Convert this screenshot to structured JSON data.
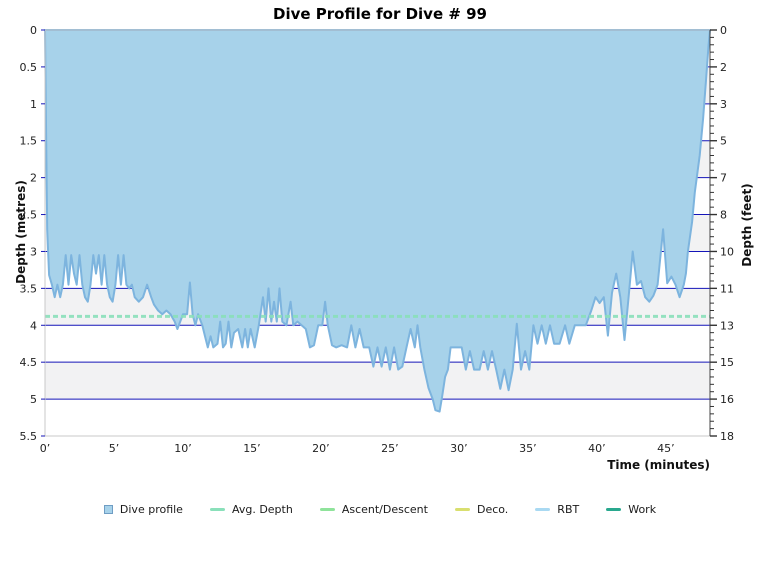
{
  "title": "Dive Profile for Dive # 99",
  "axes": {
    "x": {
      "label": "Time (minutes)",
      "tick_values": [
        0,
        5,
        10,
        15,
        20,
        25,
        30,
        35,
        40,
        45
      ],
      "tick_labels": [
        "0’",
        "5’",
        "10’",
        "15’",
        "20’",
        "25’",
        "30’",
        "35’",
        "40’",
        "45’"
      ],
      "min": 0,
      "max": 48.2
    },
    "y_left": {
      "label": "Depth (metres)",
      "tick_values": [
        0,
        0.5,
        1,
        1.5,
        2,
        2.5,
        3,
        3.5,
        4,
        4.5,
        5,
        5.5
      ],
      "tick_labels": [
        "0",
        "0.5",
        "1",
        "1.5",
        "2",
        "2.5",
        "3",
        "3.5",
        "4",
        "4.5",
        "5",
        "5.5"
      ],
      "min": 0,
      "max": 5.5,
      "inverted": true
    },
    "y_right": {
      "label": "Depth (feet)",
      "tick_labels": [
        "0",
        "2",
        "3",
        "5",
        "7",
        "8",
        "10",
        "11",
        "13",
        "15",
        "16",
        "18"
      ],
      "minor_tick_step_metres": 0.1
    }
  },
  "legend": [
    {
      "label": "Dive profile",
      "marker": "square",
      "color": "#a7d2ea"
    },
    {
      "label": "Avg. Depth",
      "marker": "line",
      "color": "#8ae0ba"
    },
    {
      "label": "Ascent/Descent",
      "marker": "line",
      "color": "#8fe39b"
    },
    {
      "label": "Deco.",
      "marker": "line",
      "color": "#d9df6f"
    },
    {
      "label": "RBT",
      "marker": "line",
      "color": "#a9d9f2"
    },
    {
      "label": "Work",
      "marker": "line",
      "color": "#29a88e"
    }
  ],
  "colors": {
    "profile_fill": "#a7d2ea",
    "profile_stroke": "#7db4de",
    "gridline": "#1515b8",
    "avg_depth_line": "#8ae0ba",
    "band_gray": "#f2f2f3",
    "plot_border": "#c8c8c8",
    "right_spine": "#444444",
    "tick_text": "#222222"
  },
  "chart_data": {
    "type": "area",
    "title": "Dive Profile for Dive # 99",
    "xlabel": "Time (minutes)",
    "ylabel_left": "Depth (metres)",
    "ylabel_right": "Depth (feet)",
    "xlim": [
      0,
      48.2
    ],
    "ylim_metres": [
      0,
      5.5
    ],
    "y_axis_inverted": true,
    "grid": "horizontal_0.5m_navy_under_fill",
    "background_bands": "alternating white/#f2f2f3 every 0.5 m",
    "legend_position": "bottom-center",
    "avg_depth_m": 3.88,
    "max_depth_m": 5.17,
    "series": [
      {
        "name": "Dive profile",
        "units": [
          "minutes",
          "metres"
        ],
        "points": [
          [
            0,
            0
          ],
          [
            0.08,
            1.4
          ],
          [
            0.16,
            2.7
          ],
          [
            0.3,
            3.32
          ],
          [
            0.5,
            3.45
          ],
          [
            0.7,
            3.62
          ],
          [
            0.9,
            3.45
          ],
          [
            1.1,
            3.62
          ],
          [
            1.3,
            3.45
          ],
          [
            1.5,
            3.05
          ],
          [
            1.7,
            3.45
          ],
          [
            1.9,
            3.05
          ],
          [
            2.1,
            3.3
          ],
          [
            2.3,
            3.45
          ],
          [
            2.5,
            3.05
          ],
          [
            2.7,
            3.45
          ],
          [
            2.9,
            3.62
          ],
          [
            3.1,
            3.68
          ],
          [
            3.3,
            3.45
          ],
          [
            3.5,
            3.05
          ],
          [
            3.7,
            3.3
          ],
          [
            3.9,
            3.05
          ],
          [
            4.1,
            3.45
          ],
          [
            4.3,
            3.05
          ],
          [
            4.5,
            3.45
          ],
          [
            4.7,
            3.62
          ],
          [
            4.9,
            3.68
          ],
          [
            5.1,
            3.45
          ],
          [
            5.3,
            3.05
          ],
          [
            5.5,
            3.45
          ],
          [
            5.7,
            3.05
          ],
          [
            5.9,
            3.45
          ],
          [
            6.1,
            3.5
          ],
          [
            6.3,
            3.45
          ],
          [
            6.5,
            3.62
          ],
          [
            6.8,
            3.68
          ],
          [
            7.1,
            3.62
          ],
          [
            7.4,
            3.45
          ],
          [
            7.7,
            3.62
          ],
          [
            7.9,
            3.72
          ],
          [
            8.2,
            3.8
          ],
          [
            8.5,
            3.85
          ],
          [
            8.8,
            3.8
          ],
          [
            9.1,
            3.85
          ],
          [
            9.4,
            3.95
          ],
          [
            9.6,
            4.05
          ],
          [
            9.8,
            3.95
          ],
          [
            10.0,
            3.85
          ],
          [
            10.3,
            3.85
          ],
          [
            10.5,
            3.42
          ],
          [
            10.7,
            3.85
          ],
          [
            10.9,
            4.0
          ],
          [
            11.1,
            3.85
          ],
          [
            11.4,
            4.0
          ],
          [
            11.6,
            4.15
          ],
          [
            11.8,
            4.3
          ],
          [
            12.0,
            4.15
          ],
          [
            12.2,
            4.3
          ],
          [
            12.5,
            4.25
          ],
          [
            12.7,
            3.95
          ],
          [
            12.9,
            4.3
          ],
          [
            13.1,
            4.25
          ],
          [
            13.3,
            3.95
          ],
          [
            13.5,
            4.3
          ],
          [
            13.7,
            4.1
          ],
          [
            14.0,
            4.05
          ],
          [
            14.3,
            4.3
          ],
          [
            14.5,
            4.05
          ],
          [
            14.7,
            4.3
          ],
          [
            14.9,
            4.05
          ],
          [
            15.2,
            4.3
          ],
          [
            15.5,
            4.0
          ],
          [
            15.8,
            3.62
          ],
          [
            16.0,
            3.95
          ],
          [
            16.2,
            3.5
          ],
          [
            16.4,
            3.95
          ],
          [
            16.6,
            3.68
          ],
          [
            16.8,
            3.95
          ],
          [
            17.0,
            3.5
          ],
          [
            17.2,
            3.95
          ],
          [
            17.5,
            4.0
          ],
          [
            17.8,
            3.68
          ],
          [
            18.0,
            4.0
          ],
          [
            18.3,
            3.95
          ],
          [
            18.6,
            4.0
          ],
          [
            18.9,
            4.05
          ],
          [
            19.2,
            4.3
          ],
          [
            19.5,
            4.27
          ],
          [
            19.8,
            4.0
          ],
          [
            20.1,
            4.0
          ],
          [
            20.3,
            3.68
          ],
          [
            20.5,
            4.0
          ],
          [
            20.8,
            4.27
          ],
          [
            21.1,
            4.3
          ],
          [
            21.5,
            4.27
          ],
          [
            21.9,
            4.3
          ],
          [
            22.2,
            4.0
          ],
          [
            22.5,
            4.3
          ],
          [
            22.8,
            4.05
          ],
          [
            23.1,
            4.3
          ],
          [
            23.5,
            4.3
          ],
          [
            23.8,
            4.56
          ],
          [
            24.1,
            4.3
          ],
          [
            24.4,
            4.56
          ],
          [
            24.7,
            4.3
          ],
          [
            25.0,
            4.6
          ],
          [
            25.3,
            4.3
          ],
          [
            25.6,
            4.6
          ],
          [
            25.9,
            4.56
          ],
          [
            26.2,
            4.3
          ],
          [
            26.5,
            4.05
          ],
          [
            26.8,
            4.3
          ],
          [
            27.0,
            4.0
          ],
          [
            27.2,
            4.3
          ],
          [
            27.5,
            4.6
          ],
          [
            27.8,
            4.85
          ],
          [
            28.1,
            5.0
          ],
          [
            28.3,
            5.15
          ],
          [
            28.6,
            5.17
          ],
          [
            28.8,
            4.95
          ],
          [
            29.0,
            4.7
          ],
          [
            29.2,
            4.6
          ],
          [
            29.4,
            4.3
          ],
          [
            29.8,
            4.3
          ],
          [
            30.2,
            4.3
          ],
          [
            30.5,
            4.6
          ],
          [
            30.8,
            4.35
          ],
          [
            31.1,
            4.6
          ],
          [
            31.5,
            4.6
          ],
          [
            31.8,
            4.35
          ],
          [
            32.1,
            4.6
          ],
          [
            32.4,
            4.35
          ],
          [
            32.7,
            4.6
          ],
          [
            33.0,
            4.86
          ],
          [
            33.3,
            4.6
          ],
          [
            33.6,
            4.88
          ],
          [
            33.9,
            4.6
          ],
          [
            34.2,
            3.98
          ],
          [
            34.5,
            4.6
          ],
          [
            34.8,
            4.35
          ],
          [
            35.1,
            4.6
          ],
          [
            35.4,
            4.0
          ],
          [
            35.7,
            4.25
          ],
          [
            36.0,
            4.0
          ],
          [
            36.3,
            4.25
          ],
          [
            36.6,
            4.0
          ],
          [
            36.9,
            4.25
          ],
          [
            37.3,
            4.25
          ],
          [
            37.7,
            4.0
          ],
          [
            38.0,
            4.25
          ],
          [
            38.4,
            4.0
          ],
          [
            38.8,
            4.0
          ],
          [
            39.2,
            4.0
          ],
          [
            39.6,
            3.8
          ],
          [
            39.9,
            3.62
          ],
          [
            40.2,
            3.7
          ],
          [
            40.5,
            3.62
          ],
          [
            40.8,
            4.14
          ],
          [
            41.1,
            3.56
          ],
          [
            41.4,
            3.3
          ],
          [
            41.7,
            3.62
          ],
          [
            42.0,
            4.2
          ],
          [
            42.3,
            3.62
          ],
          [
            42.6,
            3.0
          ],
          [
            42.9,
            3.45
          ],
          [
            43.2,
            3.4
          ],
          [
            43.5,
            3.62
          ],
          [
            43.8,
            3.68
          ],
          [
            44.1,
            3.6
          ],
          [
            44.4,
            3.45
          ],
          [
            44.8,
            2.7
          ],
          [
            45.1,
            3.43
          ],
          [
            45.4,
            3.34
          ],
          [
            45.7,
            3.45
          ],
          [
            46.0,
            3.62
          ],
          [
            46.3,
            3.45
          ],
          [
            46.45,
            3.3
          ],
          [
            46.6,
            3.0
          ],
          [
            46.9,
            2.6
          ],
          [
            47.1,
            2.2
          ],
          [
            47.45,
            1.7
          ],
          [
            47.7,
            1.2
          ],
          [
            47.9,
            0.7
          ],
          [
            48.1,
            0.2
          ],
          [
            48.2,
            0
          ]
        ]
      },
      {
        "name": "Avg. Depth",
        "type": "hline-dashed",
        "value_m": 3.88
      }
    ]
  }
}
